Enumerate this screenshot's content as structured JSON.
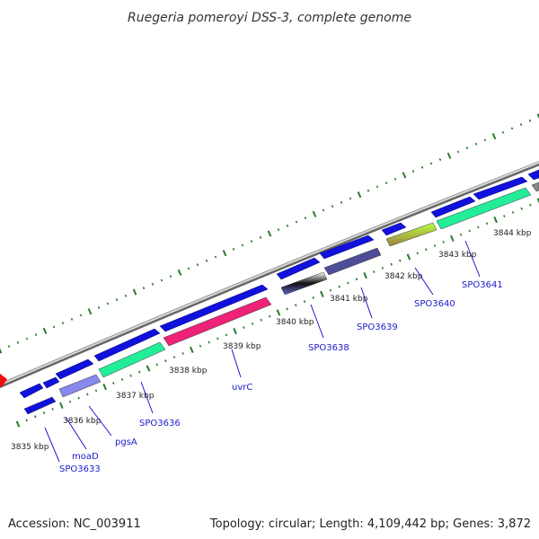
{
  "title": "Ruegeria pomeroyi DSS-3, complete genome",
  "footer": {
    "accession": "Accession: NC_003911",
    "summary": "Topology: circular; Length: 4,109,442 bp; Genes: 3,872"
  },
  "colors": {
    "backbone": "#8c8c8c",
    "cds": "#1111dd",
    "gene_label": "#1a1acc",
    "tick": "#2a7a2a",
    "start_marker": "#ee1111"
  },
  "kbp_labels": [
    "3835 kbp",
    "3836 kbp",
    "3837 kbp",
    "3838 kbp",
    "3839 kbp",
    "3840 kbp",
    "3841 kbp",
    "3842 kbp",
    "3843 kbp",
    "3844 kbp"
  ],
  "gene_labels": [
    "SPO3633",
    "moaD",
    "pgsA",
    "SPO3636",
    "uvrC",
    "SPO3638",
    "SPO3639",
    "SPO3640",
    "SPO3641"
  ]
}
